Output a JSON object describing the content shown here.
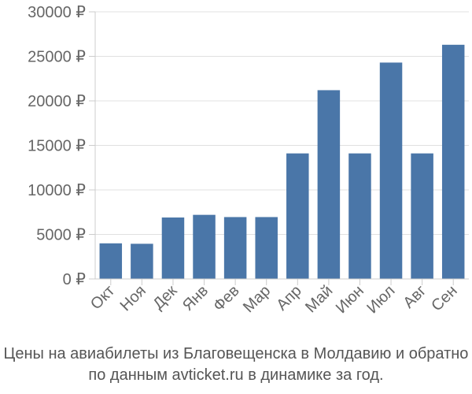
{
  "chart_data": {
    "type": "bar",
    "categories": [
      "Окт",
      "Ноя",
      "Дек",
      "Янв",
      "Фев",
      "Мар",
      "Апр",
      "Май",
      "Июн",
      "Июл",
      "Авг",
      "Сен"
    ],
    "values": [
      4000,
      3950,
      6900,
      7200,
      6950,
      6950,
      14100,
      21200,
      14100,
      24300,
      14100,
      26300
    ],
    "ylim": [
      0,
      30000
    ],
    "yticks": [
      0,
      5000,
      10000,
      15000,
      20000,
      25000,
      30000
    ],
    "ytick_labels": [
      "0 ₽",
      "5000 ₽",
      "10000 ₽",
      "15000 ₽",
      "20000 ₽",
      "25000 ₽",
      "30000 ₽"
    ],
    "bar_color": "#4a76a8",
    "title": "",
    "xlabel": "",
    "ylabel": ""
  },
  "caption": {
    "line1": "Цены на авиабилеты из Благовещенска в Молдавию и обратно",
    "line2": "по данным avticket.ru в динамике за год."
  }
}
